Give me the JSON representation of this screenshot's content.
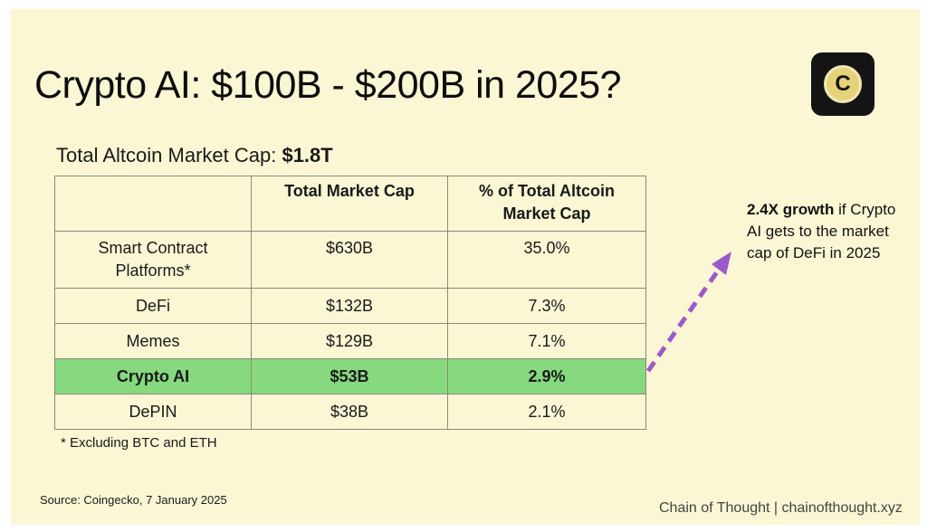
{
  "title": "Crypto AI: $100B - $200B in 2025?",
  "logo_letter": "C",
  "subtitle": {
    "label": "Total Altcoin Market Cap: ",
    "value": "$1.8T"
  },
  "chart_data": {
    "type": "table",
    "columns": [
      "",
      "Total Market Cap",
      "% of Total Altcoin Market Cap"
    ],
    "rows": [
      {
        "category": "Smart Contract Platforms*",
        "market_cap": "$630B",
        "pct": "35.0%"
      },
      {
        "category": "DeFi",
        "market_cap": "$132B",
        "pct": "7.3%"
      },
      {
        "category": "Memes",
        "market_cap": "$129B",
        "pct": "7.1%"
      },
      {
        "category": "Crypto AI",
        "market_cap": "$53B",
        "pct": "2.9%",
        "highlighted": true
      },
      {
        "category": "DePIN",
        "market_cap": "$38B",
        "pct": "2.1%"
      }
    ],
    "highlight_color": "#86d97e"
  },
  "table_text": {
    "h_mc": "Total Market Cap",
    "h_pct_1": "% of Total Altcoin",
    "h_pct_2": "Market Cap",
    "r0_cat_1": "Smart Contract",
    "r0_cat_2": "Platforms*"
  },
  "callout": {
    "bold": "2.4X growth",
    "rest": " if Crypto AI gets to the market cap of DeFi in 2025"
  },
  "arrow_color": "#9b59c9",
  "footnote": "* Excluding BTC and ETH",
  "source": "Source: Coingecko, 7 January 2025",
  "brand": "Chain of Thought | chainofthought.xyz"
}
